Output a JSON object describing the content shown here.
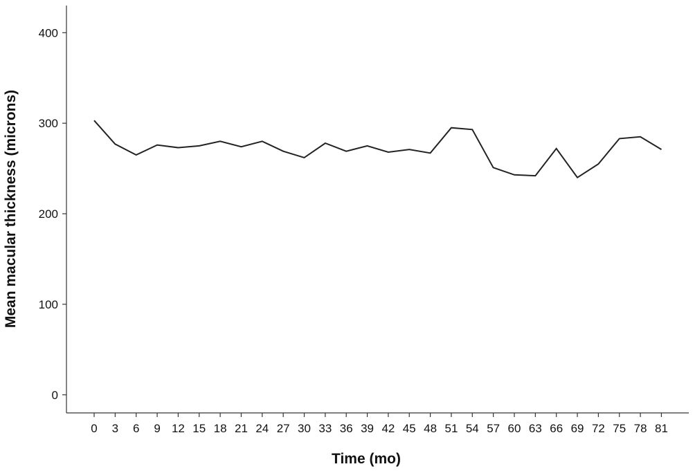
{
  "chart_data": {
    "type": "line",
    "title": "",
    "xlabel": "Time (mo)",
    "ylabel": "Mean macular thickness (microns)",
    "ylim": [
      -20,
      430
    ],
    "yticks": [
      0,
      100,
      200,
      300,
      400
    ],
    "grid": false,
    "legend": "none",
    "line_color": "#222222",
    "x": [
      0,
      3,
      6,
      9,
      12,
      15,
      18,
      21,
      24,
      27,
      30,
      33,
      36,
      39,
      42,
      45,
      48,
      51,
      54,
      57,
      60,
      63,
      66,
      69,
      72,
      75,
      78,
      81
    ],
    "series": [
      {
        "values": [
          303,
          277,
          265,
          276,
          273,
          275,
          280,
          274,
          280,
          269,
          262,
          278,
          269,
          275,
          268,
          271,
          267,
          295,
          293,
          251,
          243,
          242,
          272,
          240,
          255,
          283,
          285,
          271
        ]
      }
    ]
  }
}
